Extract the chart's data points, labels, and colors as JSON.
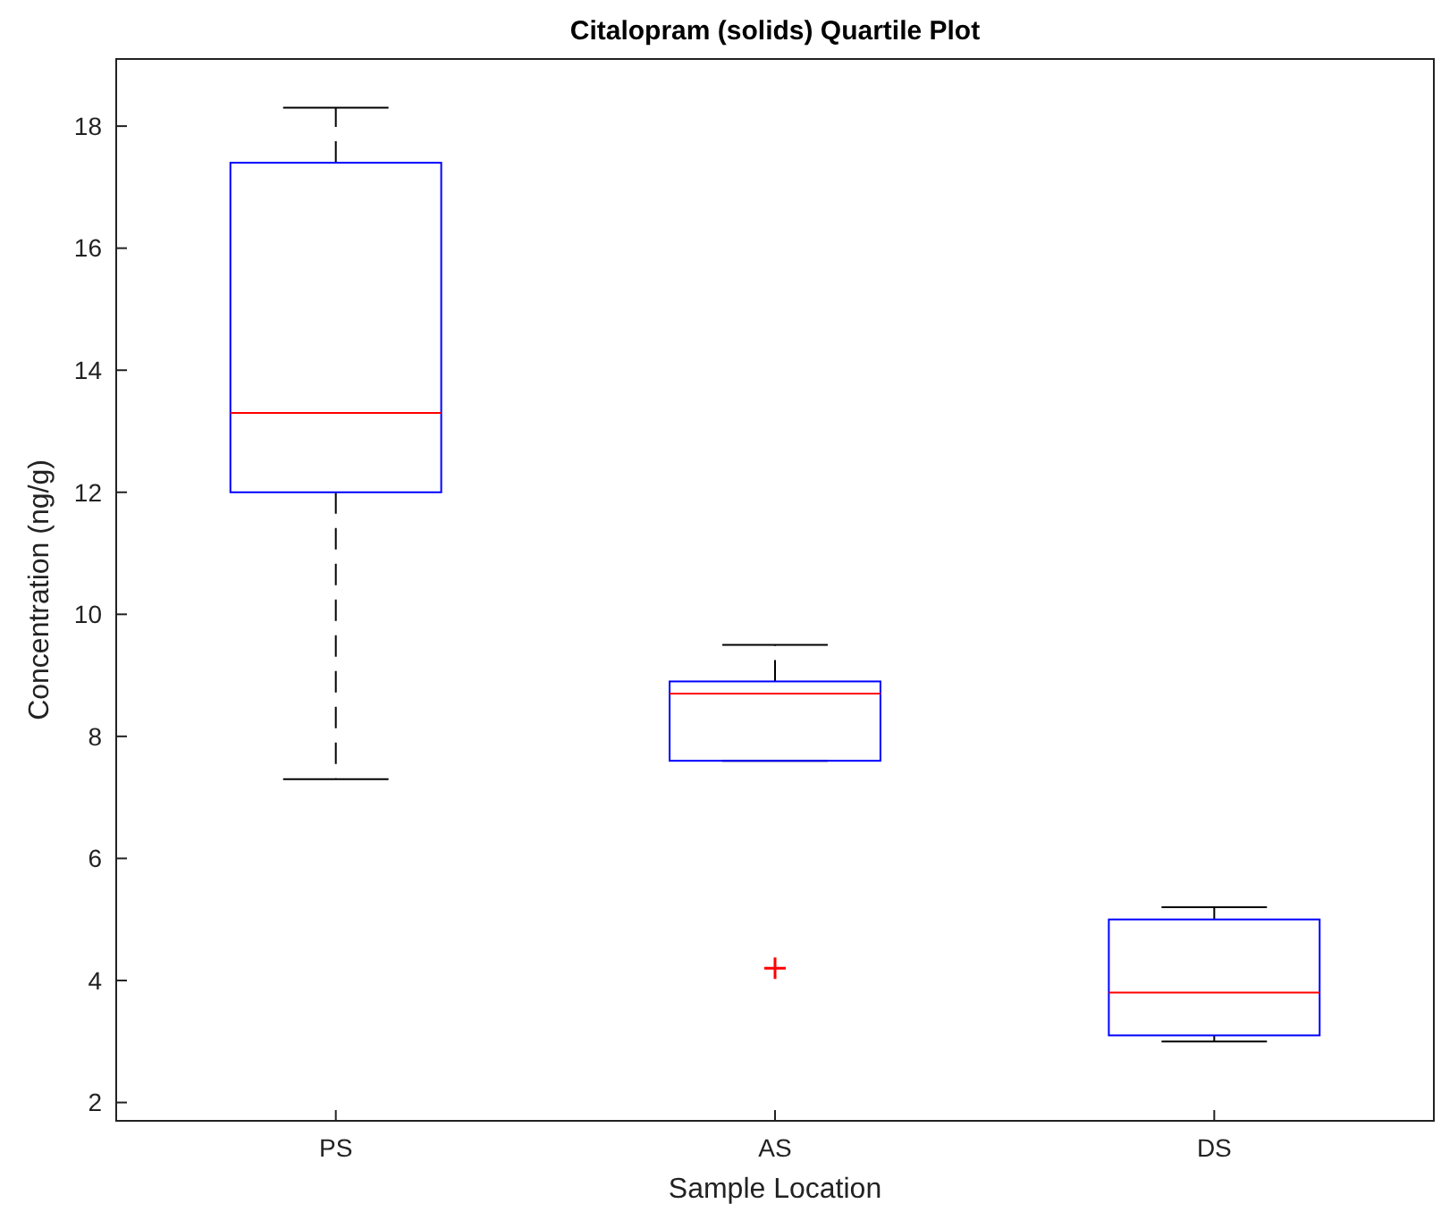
{
  "chart_data": {
    "type": "box",
    "title": "Citalopram (solids) Quartile Plot",
    "xlabel": "Sample Location",
    "ylabel": "Concentration (ng/g)",
    "categories": [
      "PS",
      "AS",
      "DS"
    ],
    "boxes": [
      {
        "low": 7.3,
        "q1": 12.0,
        "median": 13.3,
        "q3": 17.4,
        "high": 18.3
      },
      {
        "low": 7.6,
        "q1": 7.6,
        "median": 8.7,
        "q3": 8.9,
        "high": 9.5,
        "outliers": [
          4.2
        ]
      },
      {
        "low": 3.0,
        "q1": 3.1,
        "median": 3.8,
        "q3": 5.0,
        "high": 5.2
      }
    ],
    "color": "#0000ff",
    "ylim": [
      1.7,
      19.1
    ],
    "yticks": [
      2,
      4,
      6,
      8,
      10,
      12,
      14,
      16,
      18
    ],
    "grid": false
  }
}
